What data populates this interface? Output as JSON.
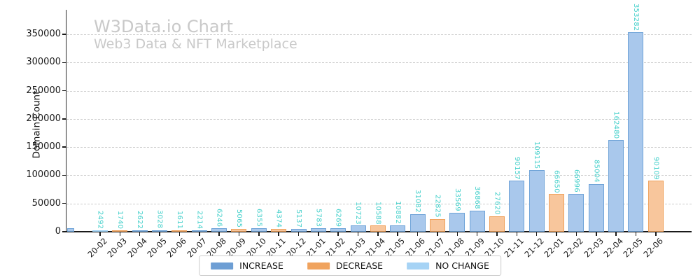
{
  "chart_data": {
    "type": "bar",
    "title": "W3Data.io Chart",
    "subtitle": "Web3 Data & NFT Marketplace",
    "ylabel": "Domain Count",
    "xlabel": "",
    "ylim": [
      0,
      395000
    ],
    "yticks": [
      0,
      50000,
      100000,
      150000,
      200000,
      250000,
      300000,
      350000
    ],
    "grid": "horizontal dashed",
    "legend_position": "bottom center",
    "title_color": "#c9c9c9",
    "value_label_color": "#45d0cb",
    "legend": [
      {
        "label": "INCREASE",
        "key": "increase",
        "color": "#6d9ed4"
      },
      {
        "label": "DECREASE",
        "key": "decrease",
        "color": "#f0a35e"
      },
      {
        "label": "NO CHANGE",
        "key": "nochange",
        "color": "#a6d3f5"
      }
    ],
    "bar_colors": {
      "increase": {
        "fill": "#a9c8ec",
        "edge": "#6fa3d8"
      },
      "decrease": {
        "fill": "#f8c69c",
        "edge": "#f0a25c"
      },
      "nochange": {
        "fill": "#c6e1fa",
        "edge": "#9fd2f6"
      }
    },
    "categories": [
      "20-02",
      "20-03",
      "20-04",
      "20-05",
      "20-06",
      "20-07",
      "20-08",
      "20-09",
      "20-10",
      "20-11",
      "20-12",
      "21-01",
      "21-02",
      "21-03",
      "21-04",
      "21-05",
      "21-06",
      "21-07",
      "21-08",
      "21-09",
      "21-10",
      "21-11",
      "21-12",
      "22-01",
      "22-02",
      "22-03",
      "22-04",
      "22-05",
      "22-06"
    ],
    "points": [
      {
        "month": "20-02",
        "value": 2492,
        "change": "nochange"
      },
      {
        "month": "20-03",
        "value": 1740,
        "change": "decrease"
      },
      {
        "month": "20-04",
        "value": 2622,
        "change": "increase"
      },
      {
        "month": "20-05",
        "value": 3028,
        "change": "increase"
      },
      {
        "month": "20-06",
        "value": 1611,
        "change": "decrease"
      },
      {
        "month": "20-07",
        "value": 2214,
        "change": "increase"
      },
      {
        "month": "20-08",
        "value": 6246,
        "change": "increase"
      },
      {
        "month": "20-09",
        "value": 5065,
        "change": "decrease"
      },
      {
        "month": "20-10",
        "value": 6355,
        "change": "increase"
      },
      {
        "month": "20-11",
        "value": 4374,
        "change": "decrease"
      },
      {
        "month": "20-12",
        "value": 5137,
        "change": "increase"
      },
      {
        "month": "21-01",
        "value": 5783,
        "change": "increase"
      },
      {
        "month": "21-02",
        "value": 6269,
        "change": "increase"
      },
      {
        "month": "21-03",
        "value": 10723,
        "change": "increase"
      },
      {
        "month": "21-04",
        "value": 10588,
        "change": "decrease"
      },
      {
        "month": "21-05",
        "value": 10882,
        "change": "increase"
      },
      {
        "month": "21-06",
        "value": 31082,
        "change": "increase"
      },
      {
        "month": "21-07",
        "value": 22825,
        "change": "decrease"
      },
      {
        "month": "21-08",
        "value": 33569,
        "change": "increase"
      },
      {
        "month": "21-09",
        "value": 36868,
        "change": "increase"
      },
      {
        "month": "21-10",
        "value": 27620,
        "change": "decrease"
      },
      {
        "month": "21-11",
        "value": 90157,
        "change": "increase"
      },
      {
        "month": "21-12",
        "value": 109115,
        "change": "increase"
      },
      {
        "month": "22-01",
        "value": 66650,
        "change": "decrease"
      },
      {
        "month": "22-02",
        "value": 66996,
        "change": "increase"
      },
      {
        "month": "22-03",
        "value": 85004,
        "change": "increase"
      },
      {
        "month": "22-04",
        "value": 162480,
        "change": "increase"
      },
      {
        "month": "22-05",
        "value": 353282,
        "change": "increase"
      },
      {
        "month": "22-06",
        "value": 90109,
        "change": "decrease"
      }
    ],
    "clipped_edge_bar": {
      "visible": true,
      "change": "increase",
      "approx_value": 6000,
      "labeled": false
    }
  }
}
